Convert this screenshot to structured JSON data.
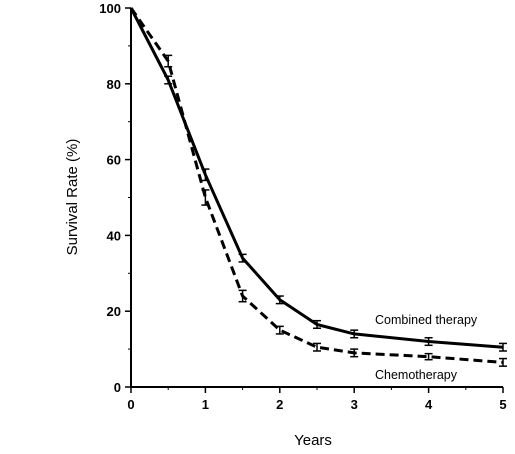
{
  "chart_data": {
    "type": "line",
    "title": "",
    "xlabel": "Years",
    "ylabel": "Survival Rate (%)",
    "xlim": [
      0,
      5
    ],
    "ylim": [
      0,
      100
    ],
    "xticks": [
      0,
      1,
      2,
      3,
      4,
      5
    ],
    "yticks": [
      0,
      20,
      40,
      60,
      80,
      100
    ],
    "grid": false,
    "legend": "none",
    "x": [
      0,
      0.5,
      1,
      1.5,
      2,
      2.5,
      3,
      4,
      5
    ],
    "series": [
      {
        "name": "Combined therapy",
        "style": "solid",
        "values": [
          100,
          81,
          56,
          34,
          23,
          16.5,
          14,
          12,
          10.5
        ],
        "error": [
          0,
          1,
          1.5,
          1,
          1,
          1,
          1,
          1,
          1
        ]
      },
      {
        "name": "Chemotherapy",
        "style": "dashed",
        "values": [
          100,
          86,
          50,
          24,
          15,
          10.5,
          9,
          8,
          6.5
        ],
        "error": [
          0,
          1.5,
          2,
          1.5,
          1,
          1,
          1,
          0.8,
          1
        ]
      }
    ],
    "annotations": [
      "Combined therapy",
      "Chemotherapy"
    ]
  }
}
